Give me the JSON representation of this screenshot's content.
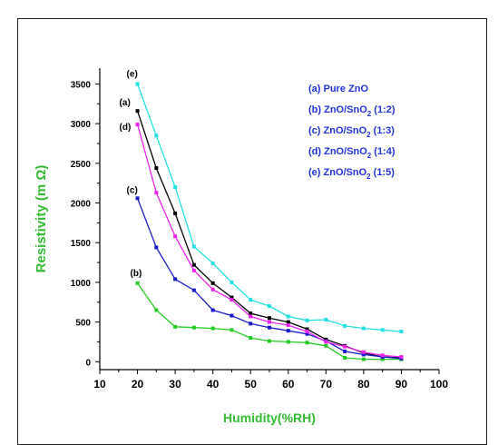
{
  "chart_data": {
    "type": "line",
    "title": "",
    "xlabel": "Humidity(%RH)",
    "ylabel": "Resistivity (m Ω)",
    "xlim": [
      10,
      100
    ],
    "ylim": [
      -100,
      3700
    ],
    "xticks": [
      10,
      20,
      30,
      40,
      50,
      60,
      70,
      80,
      90,
      100
    ],
    "yticks": [
      0,
      500,
      1000,
      1500,
      2000,
      2500,
      3000,
      3500
    ],
    "grid": false,
    "legend_position": "top-right",
    "x": [
      20,
      25,
      30,
      35,
      40,
      45,
      50,
      55,
      60,
      65,
      70,
      75,
      80,
      85,
      90
    ],
    "series": [
      {
        "id": "a",
        "label": "(a)",
        "legend_main": "(a) Pure ZnO",
        "legend_sub": "",
        "legend_tail": "",
        "color": "#000000",
        "values": [
          3160,
          2440,
          1870,
          1220,
          990,
          810,
          610,
          550,
          500,
          410,
          280,
          200,
          110,
          60,
          50
        ]
      },
      {
        "id": "b",
        "label": "(b)",
        "legend_main": "(b) ZnO/SnO",
        "legend_sub": "2",
        "legend_tail": " (1:2)",
        "color": "#22cc22",
        "values": [
          990,
          650,
          440,
          430,
          420,
          400,
          300,
          260,
          250,
          240,
          200,
          50,
          30,
          30,
          30
        ]
      },
      {
        "id": "c",
        "label": "(c)",
        "legend_main": "(c) ZnO/SnO",
        "legend_sub": "2",
        "legend_tail": " (1:3)",
        "color": "#1a1acc",
        "values": [
          2060,
          1440,
          1040,
          900,
          650,
          580,
          480,
          430,
          390,
          350,
          260,
          130,
          90,
          60,
          40
        ]
      },
      {
        "id": "d",
        "label": "(d)",
        "legend_main": "(d) ZnO/SnO",
        "legend_sub": "2",
        "legend_tail": " (1:4)",
        "color": "#ee22ee",
        "values": [
          2990,
          2130,
          1580,
          1150,
          910,
          780,
          570,
          500,
          460,
          380,
          250,
          190,
          120,
          80,
          60
        ]
      },
      {
        "id": "e",
        "label": "(e)",
        "legend_main": "(e) ZnO/SnO",
        "legend_sub": "2",
        "legend_tail": " (1:5)",
        "color": "#22e0e0",
        "values": [
          3500,
          2850,
          2200,
          1450,
          1240,
          1000,
          780,
          700,
          570,
          520,
          530,
          450,
          420,
          400,
          380
        ]
      }
    ],
    "annotations": [
      {
        "text": "(e)",
        "series": "e"
      },
      {
        "text": "(a)",
        "series": "a"
      },
      {
        "text": "(d)",
        "series": "d"
      },
      {
        "text": "(c)",
        "series": "c"
      },
      {
        "text": "(b)",
        "series": "b"
      }
    ],
    "colors": {
      "xlabel": "#33bb33",
      "ylabel": "#33bb33",
      "legend_text": "#2233dd",
      "axis": "#000000"
    }
  }
}
